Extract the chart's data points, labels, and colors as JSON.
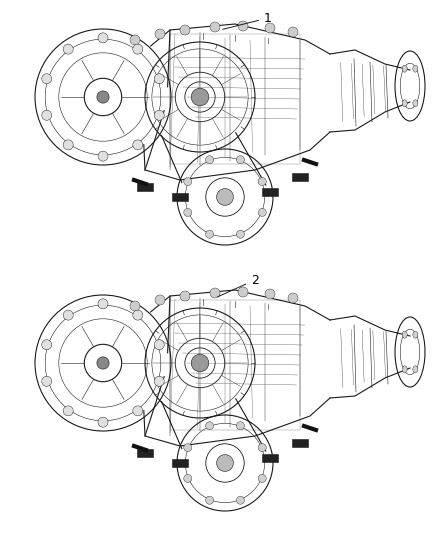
{
  "bg_color": "#ffffff",
  "line_color": "#1a1a1a",
  "label_color": "#000000",
  "label1": "1",
  "label2": "2",
  "fig_width": 4.38,
  "fig_height": 5.33,
  "dpi": 100,
  "lw_main": 0.8,
  "lw_thin": 0.4,
  "lw_med": 0.6
}
